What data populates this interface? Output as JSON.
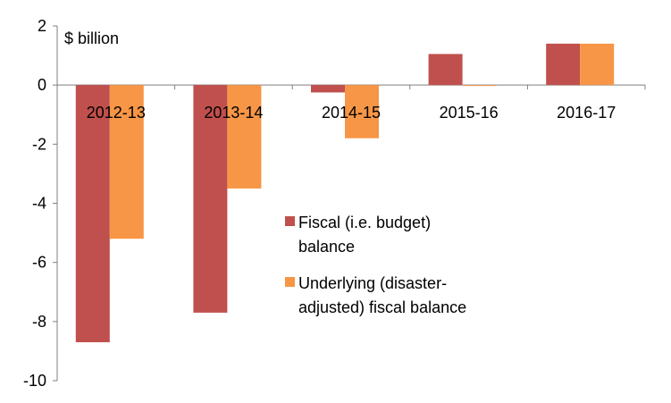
{
  "chart_data": {
    "type": "bar",
    "title": "",
    "ylabel": "$ billion",
    "xlabel": "",
    "ylim": [
      -10,
      2
    ],
    "yticks": [
      2,
      0,
      -2,
      -4,
      -6,
      -8,
      -10
    ],
    "grid": false,
    "categories": [
      "2012-13",
      "2013-14",
      "2014-15",
      "2015-16",
      "2016-17"
    ],
    "series": [
      {
        "name": "Fiscal (i.e. budget) balance",
        "legend_lines": [
          "Fiscal (i.e. budget)",
          "balance"
        ],
        "color": "#c0504d",
        "values": [
          -8.7,
          -7.7,
          -0.25,
          1.05,
          1.4
        ]
      },
      {
        "name": "Underlying (disaster-adjusted) fiscal balance",
        "legend_lines": [
          "Underlying (disaster-",
          "adjusted) fiscal balance"
        ],
        "color": "#f79646",
        "values": [
          -5.2,
          -3.5,
          -1.8,
          -0.03,
          1.4
        ]
      }
    ],
    "legend_position": "center-right"
  }
}
